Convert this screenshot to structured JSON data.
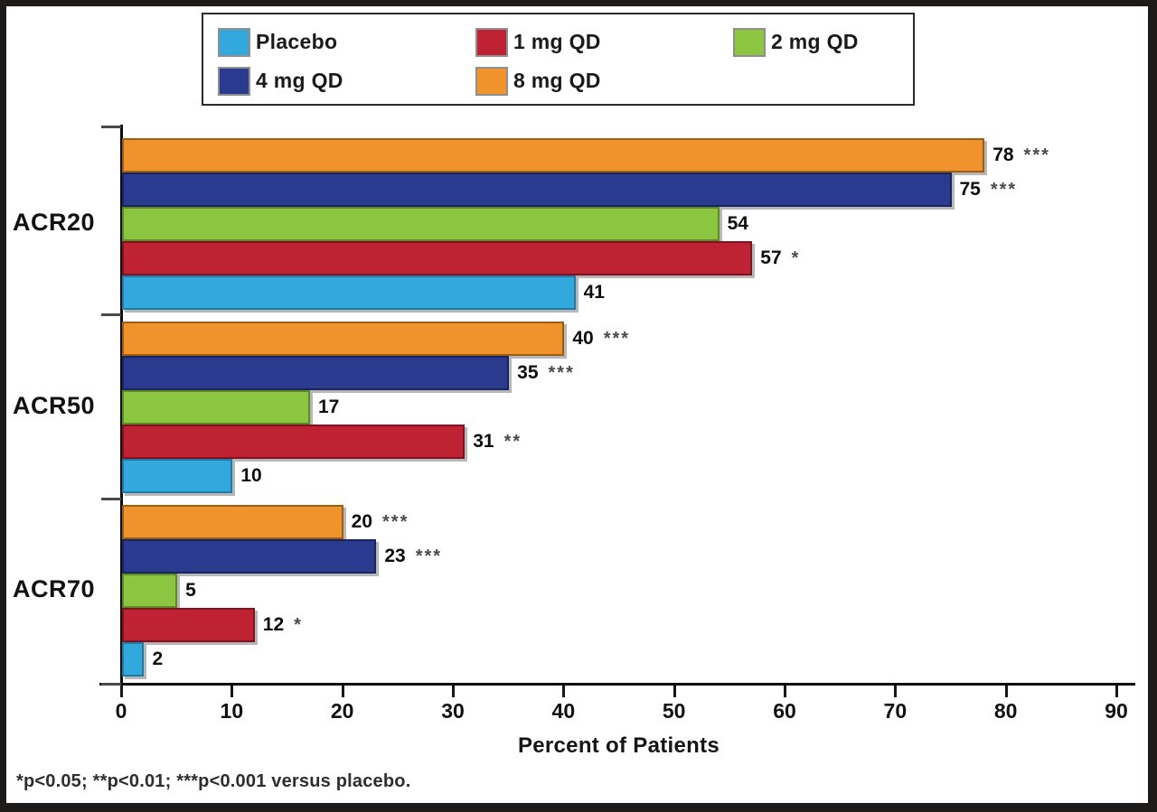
{
  "chart_data": {
    "type": "bar",
    "orientation": "horizontal",
    "xlabel": "Percent of Patients",
    "xlim": [
      0,
      90
    ],
    "xticks": [
      0,
      10,
      20,
      30,
      40,
      50,
      60,
      70,
      80,
      90
    ],
    "grid": false,
    "legend_position": "top",
    "legend": [
      {
        "label": "Placebo",
        "color": "#33A8DC",
        "border": "#1D7BA6"
      },
      {
        "label": "1 mg QD",
        "color": "#BE2233",
        "border": "#7E1220"
      },
      {
        "label": "2 mg QD",
        "color": "#8CC540",
        "border": "#5E8A24"
      },
      {
        "label": "4 mg QD",
        "color": "#2A3B8F",
        "border": "#18255F"
      },
      {
        "label": "8 mg QD",
        "color": "#F0932C",
        "border": "#9C5E12"
      }
    ],
    "series_order_top_to_bottom": [
      "8 mg QD",
      "4 mg QD",
      "2 mg QD",
      "1 mg QD",
      "Placebo"
    ],
    "groups": [
      {
        "label": "ACR20",
        "bars": [
          {
            "series": "8 mg QD",
            "value": 78,
            "significance": "***"
          },
          {
            "series": "4 mg QD",
            "value": 75,
            "significance": "***"
          },
          {
            "series": "2 mg QD",
            "value": 54,
            "significance": ""
          },
          {
            "series": "1 mg QD",
            "value": 57,
            "significance": "*"
          },
          {
            "series": "Placebo",
            "value": 41,
            "significance": ""
          }
        ]
      },
      {
        "label": "ACR50",
        "bars": [
          {
            "series": "8 mg QD",
            "value": 40,
            "significance": "***"
          },
          {
            "series": "4 mg QD",
            "value": 35,
            "significance": "***"
          },
          {
            "series": "2 mg QD",
            "value": 17,
            "significance": ""
          },
          {
            "series": "1 mg QD",
            "value": 31,
            "significance": "**"
          },
          {
            "series": "Placebo",
            "value": 10,
            "significance": ""
          }
        ]
      },
      {
        "label": "ACR70",
        "bars": [
          {
            "series": "8 mg QD",
            "value": 20,
            "significance": "***"
          },
          {
            "series": "4 mg QD",
            "value": 23,
            "significance": "***"
          },
          {
            "series": "2 mg QD",
            "value": 5,
            "significance": ""
          },
          {
            "series": "1 mg QD",
            "value": 12,
            "significance": "*"
          },
          {
            "series": "Placebo",
            "value": 2,
            "significance": ""
          }
        ]
      }
    ],
    "footnote": "*p<0.05; **p<0.01; ***p<0.001 versus placebo."
  }
}
